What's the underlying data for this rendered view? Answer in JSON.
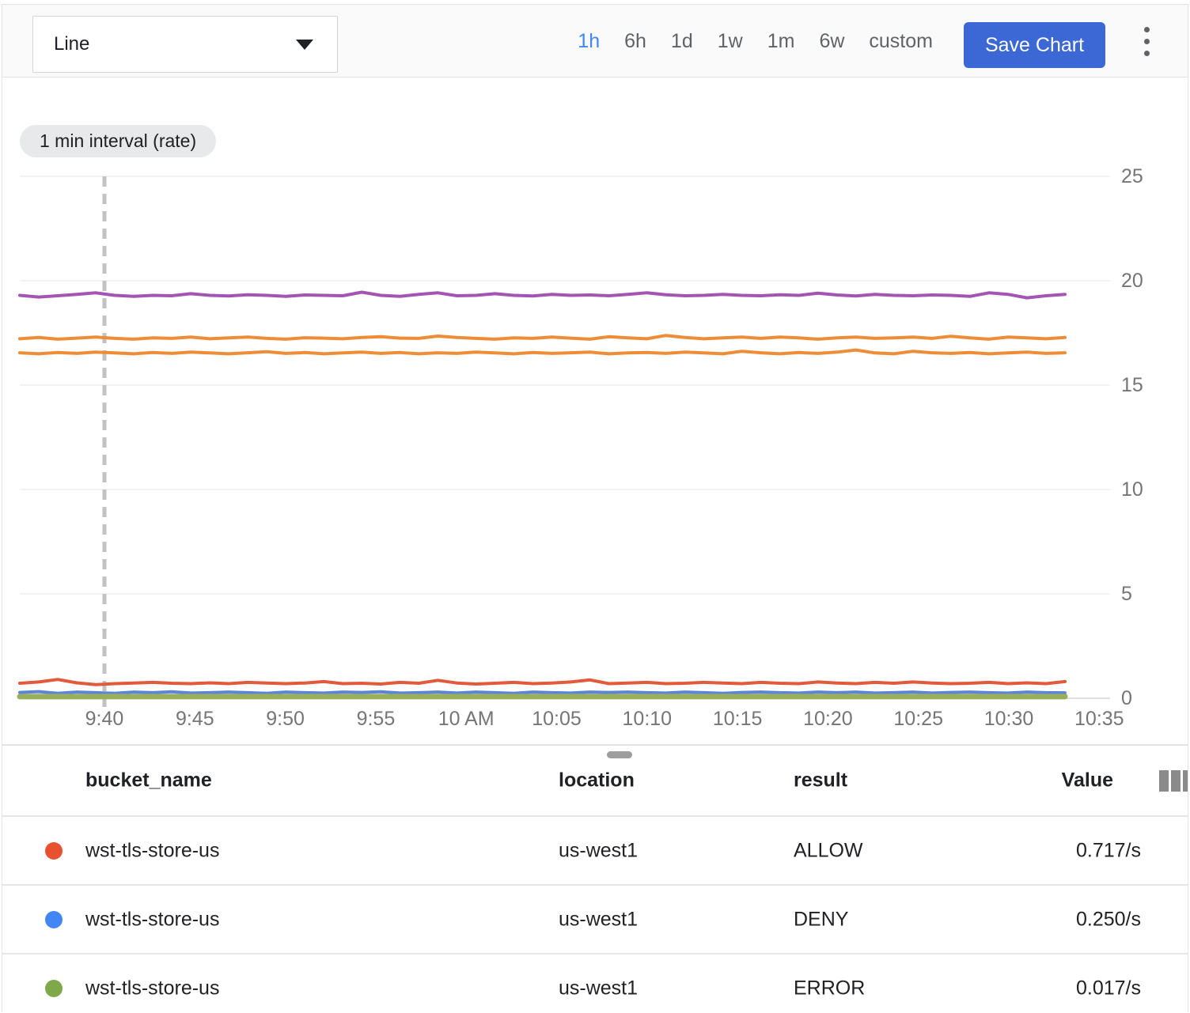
{
  "toolbar": {
    "chart_type": "Line",
    "time_ranges": [
      "1h",
      "6h",
      "1d",
      "1w",
      "1m",
      "6w",
      "custom"
    ],
    "active_time_range": "1h",
    "save_label": "Save Chart"
  },
  "chart_data": {
    "type": "line",
    "title": "1 min interval (rate)",
    "badge": "1 min interval (rate)",
    "ylim": [
      0,
      25
    ],
    "y_ticks": [
      0,
      5,
      10,
      15,
      20,
      25
    ],
    "x_tick_labels": [
      "9:40",
      "9:45",
      "9:50",
      "9:55",
      "10 AM",
      "10:05",
      "10:10",
      "10:15",
      "10:20",
      "10:25",
      "10:30",
      "10:35"
    ],
    "x_interval": "1 min",
    "cursor_line_at": "9:40",
    "grid": "horizontal",
    "legend_position": "table-below",
    "series": [
      {
        "name": "series-purple",
        "color": "#A455B3",
        "width": 4,
        "values": [
          19.3,
          19.22,
          19.28,
          19.35,
          19.42,
          19.3,
          19.25,
          19.3,
          19.28,
          19.38,
          19.3,
          19.27,
          19.33,
          19.3,
          19.25,
          19.32,
          19.3,
          19.28,
          19.45,
          19.3,
          19.25,
          19.35,
          19.42,
          19.28,
          19.3,
          19.38,
          19.3,
          19.27,
          19.35,
          19.3,
          19.32,
          19.28,
          19.35,
          19.42,
          19.33,
          19.28,
          19.3,
          19.35,
          19.3,
          19.28,
          19.33,
          19.3,
          19.4,
          19.32,
          19.27,
          19.35,
          19.3,
          19.28,
          19.32,
          19.3,
          19.25,
          19.42,
          19.35,
          19.18,
          19.28,
          19.35
        ]
      },
      {
        "name": "series-orange-upper",
        "color": "#EE8D38",
        "width": 4,
        "values": [
          17.22,
          17.28,
          17.2,
          17.25,
          17.3,
          17.24,
          17.2,
          17.26,
          17.24,
          17.3,
          17.22,
          17.26,
          17.3,
          17.24,
          17.2,
          17.27,
          17.25,
          17.22,
          17.28,
          17.32,
          17.25,
          17.24,
          17.35,
          17.28,
          17.24,
          17.2,
          17.26,
          17.24,
          17.3,
          17.25,
          17.2,
          17.32,
          17.26,
          17.22,
          17.38,
          17.28,
          17.22,
          17.26,
          17.3,
          17.24,
          17.3,
          17.26,
          17.2,
          17.26,
          17.3,
          17.24,
          17.26,
          17.3,
          17.24,
          17.34,
          17.26,
          17.2,
          17.3,
          17.26,
          17.22,
          17.28
        ]
      },
      {
        "name": "series-orange-lower",
        "color": "#EE8D38",
        "width": 4,
        "values": [
          16.55,
          16.5,
          16.56,
          16.52,
          16.58,
          16.54,
          16.5,
          16.56,
          16.52,
          16.58,
          16.54,
          16.5,
          16.55,
          16.6,
          16.52,
          16.56,
          16.5,
          16.54,
          16.58,
          16.52,
          16.56,
          16.5,
          16.55,
          16.52,
          16.58,
          16.54,
          16.5,
          16.56,
          16.52,
          16.55,
          16.58,
          16.5,
          16.54,
          16.56,
          16.52,
          16.58,
          16.54,
          16.5,
          16.62,
          16.55,
          16.5,
          16.56,
          16.52,
          16.58,
          16.68,
          16.54,
          16.5,
          16.62,
          16.55,
          16.52,
          16.56,
          16.5,
          16.54,
          16.58,
          16.52,
          16.55
        ]
      },
      {
        "name": "series-red-ALLOW",
        "color": "#E25A3C",
        "width": 4,
        "values": [
          0.72,
          0.78,
          0.9,
          0.74,
          0.65,
          0.7,
          0.73,
          0.76,
          0.72,
          0.7,
          0.74,
          0.7,
          0.76,
          0.73,
          0.7,
          0.73,
          0.8,
          0.7,
          0.72,
          0.68,
          0.76,
          0.72,
          0.86,
          0.73,
          0.68,
          0.72,
          0.76,
          0.7,
          0.73,
          0.78,
          0.88,
          0.7,
          0.73,
          0.76,
          0.7,
          0.72,
          0.76,
          0.73,
          0.7,
          0.76,
          0.72,
          0.7,
          0.78,
          0.73,
          0.7,
          0.76,
          0.72,
          0.78,
          0.73,
          0.7,
          0.72,
          0.76,
          0.7,
          0.74,
          0.7,
          0.8
        ]
      },
      {
        "name": "series-blue-DENY",
        "color": "#5B85DC",
        "width": 4,
        "values": [
          0.28,
          0.32,
          0.24,
          0.3,
          0.27,
          0.24,
          0.3,
          0.27,
          0.31,
          0.25,
          0.27,
          0.3,
          0.27,
          0.24,
          0.3,
          0.27,
          0.25,
          0.3,
          0.28,
          0.31,
          0.25,
          0.27,
          0.3,
          0.25,
          0.3,
          0.27,
          0.24,
          0.3,
          0.27,
          0.25,
          0.3,
          0.28,
          0.3,
          0.27,
          0.25,
          0.3,
          0.27,
          0.24,
          0.28,
          0.3,
          0.27,
          0.25,
          0.3,
          0.27,
          0.3,
          0.25,
          0.27,
          0.3,
          0.25,
          0.28,
          0.3,
          0.27,
          0.25,
          0.3,
          0.27,
          0.26
        ]
      },
      {
        "name": "series-green-ERROR",
        "color": "#99AF5A",
        "width": 7,
        "values": [
          0.08,
          0.08,
          0.08,
          0.08,
          0.08,
          0.08,
          0.08,
          0.08,
          0.08,
          0.08,
          0.08,
          0.08,
          0.08,
          0.08,
          0.08,
          0.08,
          0.08,
          0.08,
          0.08,
          0.08,
          0.08,
          0.08,
          0.08,
          0.08,
          0.08,
          0.08,
          0.08,
          0.08,
          0.08,
          0.08,
          0.08,
          0.08,
          0.08,
          0.08,
          0.08,
          0.08,
          0.08,
          0.08,
          0.08,
          0.08,
          0.08,
          0.08,
          0.08,
          0.08,
          0.08,
          0.08,
          0.08,
          0.08,
          0.08,
          0.08,
          0.08,
          0.08,
          0.08,
          0.08,
          0.08,
          0.08
        ]
      }
    ]
  },
  "table": {
    "headers": {
      "bucket_name": "bucket_name",
      "location": "location",
      "result": "result",
      "value": "Value"
    },
    "rows": [
      {
        "dot_color": "#E8512F",
        "bucket_name": "wst-tls-store-us",
        "location": "us-west1",
        "result": "ALLOW",
        "value": "0.717/s"
      },
      {
        "dot_color": "#4285F4",
        "bucket_name": "wst-tls-store-us",
        "location": "us-west1",
        "result": "DENY",
        "value": "0.250/s"
      },
      {
        "dot_color": "#7FA84A",
        "bucket_name": "wst-tls-store-us",
        "location": "us-west1",
        "result": "ERROR",
        "value": "0.017/s"
      }
    ]
  },
  "colors": {
    "accent_blue": "#4285F4",
    "save_button": "#3B68D5",
    "gridline": "#F2F2F2",
    "axis_zero_line": "#E0E0E0",
    "axis_label": "#757575",
    "cursor_dash": "#C2C2C2",
    "toolbar_bg": "#FAFAFA"
  }
}
